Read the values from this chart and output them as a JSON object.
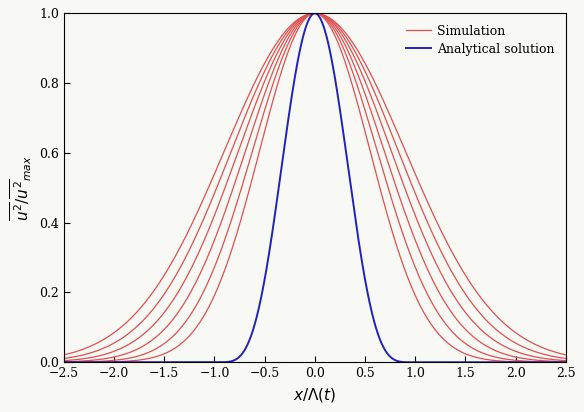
{
  "xlabel": "$x/\\Lambda(t)$",
  "ylabel": "$\\overline{u^2}/\\overline{u^2}_{max}$",
  "xlim": [
    -2.5,
    2.5
  ],
  "ylim": [
    0.0,
    1.0
  ],
  "xticks": [
    -2.5,
    -2,
    -1.5,
    -1,
    -0.5,
    0,
    0.5,
    1,
    1.5,
    2,
    2.5
  ],
  "yticks": [
    0,
    0.2,
    0.4,
    0.6,
    0.8,
    1.0
  ],
  "simulation_color": "#E05050",
  "analytical_color": "#2222BB",
  "background_color": "#F8F8F4",
  "legend_labels": [
    "Simulation",
    "Analytical solution"
  ],
  "linewidth_sim": 0.9,
  "linewidth_analytical": 1.4,
  "sim_sigmas": [
    0.55,
    0.62,
    0.69,
    0.76,
    0.83,
    0.9
  ],
  "analytical_n": 5,
  "analytical_scale": 1.0
}
